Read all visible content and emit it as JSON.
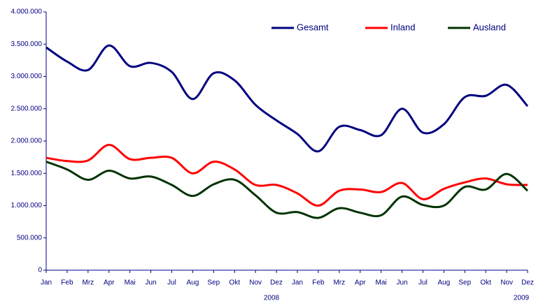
{
  "chart_data": {
    "type": "line",
    "categories": [
      "Jan",
      "Feb",
      "Mrz",
      "Apr",
      "Mai",
      "Jun",
      "Jul",
      "Aug",
      "Sep",
      "Okt",
      "Nov",
      "Dez",
      "Jan",
      "Feb",
      "Mrz",
      "Apr",
      "Mai",
      "Jun",
      "Jul",
      "Aug",
      "Sep",
      "Okt",
      "Nov",
      "Dez"
    ],
    "year_labels": [
      "2008",
      "2009"
    ],
    "series": [
      {
        "name": "Gesamt",
        "color": "#000080",
        "values": [
          3450000,
          3230000,
          3100000,
          3480000,
          3160000,
          3210000,
          3070000,
          2650000,
          3050000,
          2940000,
          2560000,
          2320000,
          2110000,
          1840000,
          2220000,
          2170000,
          2090000,
          2500000,
          2130000,
          2260000,
          2680000,
          2700000,
          2870000,
          2540000
        ]
      },
      {
        "name": "Inland",
        "color": "#ff0000",
        "values": [
          1740000,
          1690000,
          1700000,
          1940000,
          1720000,
          1740000,
          1740000,
          1500000,
          1680000,
          1560000,
          1320000,
          1320000,
          1190000,
          1000000,
          1230000,
          1250000,
          1210000,
          1350000,
          1100000,
          1260000,
          1360000,
          1420000,
          1330000,
          1320000
        ]
      },
      {
        "name": "Ausland",
        "color": "#003300",
        "values": [
          1680000,
          1560000,
          1400000,
          1540000,
          1420000,
          1450000,
          1320000,
          1150000,
          1330000,
          1400000,
          1160000,
          890000,
          900000,
          810000,
          960000,
          890000,
          850000,
          1140000,
          1010000,
          1000000,
          1290000,
          1250000,
          1490000,
          1230000
        ]
      }
    ],
    "ylim": [
      0,
      4000000
    ],
    "yticks": [
      0,
      {
        "value": 500000,
        "label": "500.000"
      },
      {
        "value": 1000000,
        "label": "1.000.000"
      },
      {
        "value": 1500000,
        "label": "1.500.000"
      },
      {
        "value": 2000000,
        "label": "2.000.000"
      },
      {
        "value": 2500000,
        "label": "2.500.000"
      },
      {
        "value": 3000000,
        "label": "3.000.000"
      },
      {
        "value": 3500000,
        "label": "3.500.000"
      },
      {
        "value": 4000000,
        "label": "4.000.000"
      }
    ],
    "legend": "top"
  }
}
